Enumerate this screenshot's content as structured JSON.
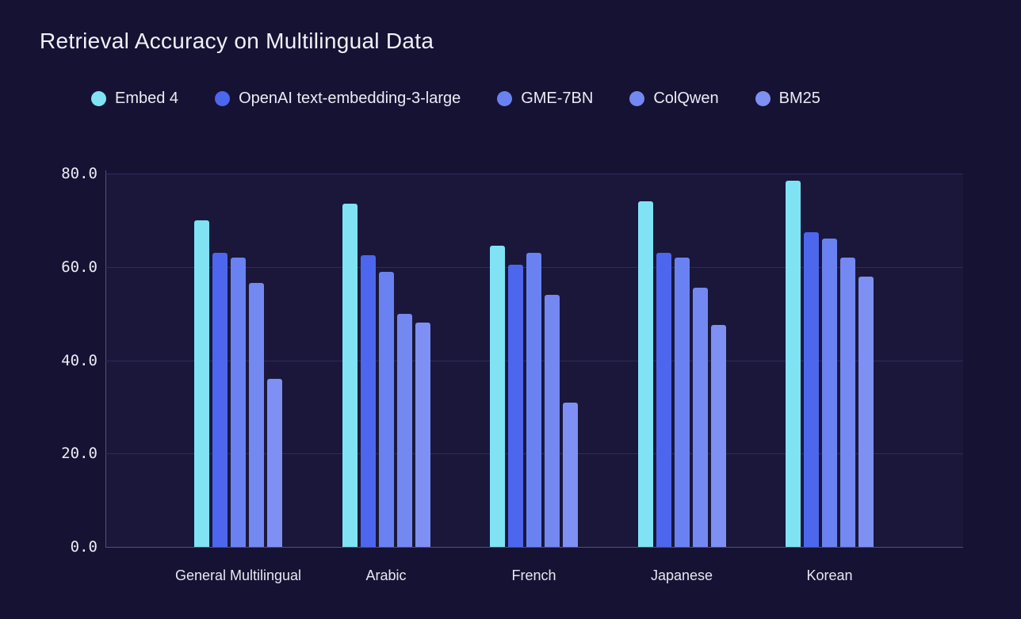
{
  "header": {
    "title": "Retrieval Accuracy on Multilingual Data"
  },
  "colors": {
    "background": "#161233",
    "plot_fill": "rgba(125,130,235,0.045)",
    "gridline": "#2E2B5E",
    "axis": "#524F80",
    "text_primary": "#F1EFF8",
    "text_secondary": "#EDEBF5"
  },
  "chart_data": {
    "type": "bar",
    "title": "Retrieval Accuracy on Multilingual Data",
    "categories": [
      "General Multilingual",
      "Arabic",
      "French",
      "Japanese",
      "Korean"
    ],
    "series": [
      {
        "name": "Embed 4",
        "color": "#7FE3F4",
        "values": [
          70.0,
          73.5,
          64.5,
          74.0,
          78.5
        ]
      },
      {
        "name": "OpenAI text-embedding-3-large",
        "color": "#4C66EE",
        "values": [
          63.0,
          62.5,
          60.5,
          63.0,
          67.5
        ]
      },
      {
        "name": "GME-7BN",
        "color": "#6A82F1",
        "values": [
          62.0,
          59.0,
          63.0,
          62.0,
          66.0
        ]
      },
      {
        "name": "ColQwen",
        "color": "#7488F1",
        "values": [
          56.5,
          50.0,
          54.0,
          55.5,
          62.0
        ]
      },
      {
        "name": "BM25",
        "color": "#7E90F3",
        "values": [
          36.0,
          48.0,
          31.0,
          47.5,
          58.0
        ]
      }
    ],
    "xlabel": "",
    "ylabel": "",
    "ylim": [
      0,
      80
    ],
    "yticks": [
      {
        "label": "80.0",
        "value": 80
      },
      {
        "label": "60.0",
        "value": 60
      },
      {
        "label": "40.0",
        "value": 40
      },
      {
        "label": "20.0",
        "value": 20
      },
      {
        "label": "0.0",
        "value": 0
      }
    ],
    "grid": true,
    "legend_position": "top"
  }
}
